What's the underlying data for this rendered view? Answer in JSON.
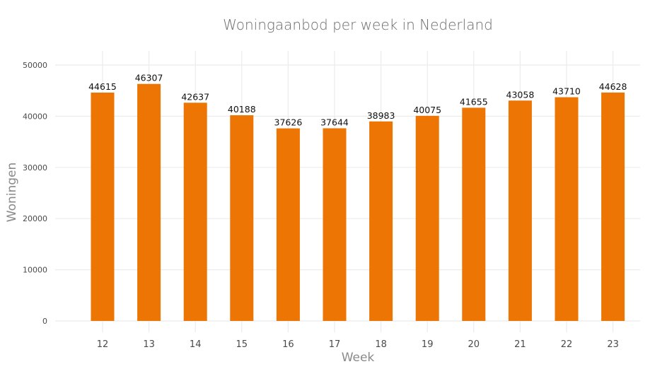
{
  "chart_data": {
    "type": "bar",
    "title": "Woningaanbod per week in Nederland",
    "xlabel": "Week",
    "ylabel": "Woningen",
    "categories": [
      "12",
      "13",
      "14",
      "15",
      "16",
      "17",
      "18",
      "19",
      "20",
      "21",
      "22",
      "23"
    ],
    "values": [
      44615,
      46307,
      42637,
      40188,
      37626,
      37644,
      38983,
      40075,
      41655,
      43058,
      43710,
      44628
    ],
    "y_ticks": [
      "0",
      "10000",
      "20000",
      "30000",
      "40000",
      "50000"
    ],
    "ylim": [
      0,
      52000
    ],
    "grid": true,
    "bar_color": "#ec7504"
  }
}
